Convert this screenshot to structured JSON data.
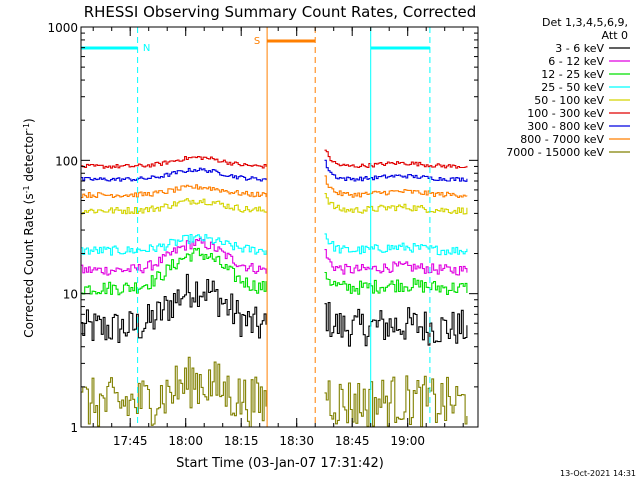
{
  "chart_data": {
    "type": "line",
    "title": "RHESSI Observing Summary Count Rates, Corrected",
    "xlabel": "Start Time (03-Jan-07 17:31:42)",
    "ylabel_parts": [
      "Corrected Count Rate (s",
      "-1",
      " detector",
      "-1",
      ")"
    ],
    "yscale": "log",
    "ylim": [
      1,
      1000
    ],
    "y_ticks": [
      {
        "value": 1,
        "label": "1"
      },
      {
        "value": 10,
        "label": "10"
      },
      {
        "value": 100,
        "label": "100"
      },
      {
        "value": 1000,
        "label": "1000"
      }
    ],
    "xlim": [
      "17:31:42",
      "19:19:00"
    ],
    "x_ticks": [
      {
        "value": "17:45",
        "label": "17:45"
      },
      {
        "value": "18:00",
        "label": "18:00"
      },
      {
        "value": "18:15",
        "label": "18:15"
      },
      {
        "value": "18:30",
        "label": "18:30"
      },
      {
        "value": "18:45",
        "label": "18:45"
      },
      {
        "value": "19:00",
        "label": "19:00"
      }
    ],
    "legend": {
      "position": "top-right",
      "header": [
        "Det 1,3,4,5,6,9,",
        "Att 0"
      ]
    },
    "gap": [
      "18:22",
      "18:37"
    ],
    "series": [
      {
        "name": "3 - 6 keV",
        "color": "#000000",
        "base": 5.5,
        "peak": 11,
        "noise": 0.32,
        "step": 0.5
      },
      {
        "name": "6 - 12 keV",
        "color": "#e000e0",
        "base": 15,
        "peak": 24,
        "noise": 0.09,
        "step": 0.5
      },
      {
        "name": "12 - 25 keV",
        "color": "#00e000",
        "base": 11,
        "peak": 20,
        "noise": 0.12,
        "step": 0.5
      },
      {
        "name": "25 - 50 keV",
        "color": "#00ffff",
        "base": 21,
        "peak": 26,
        "noise": 0.08,
        "step": 0.5
      },
      {
        "name": "50 - 100 keV",
        "color": "#d4d400",
        "base": 42,
        "peak": 50,
        "noise": 0.06,
        "step": 0.5
      },
      {
        "name": "100 - 300 keV",
        "color": "#e00000",
        "base": 90,
        "peak": 105,
        "noise": 0.035,
        "step": 0.5
      },
      {
        "name": "300 - 800 keV",
        "color": "#0000e0",
        "base": 72,
        "peak": 85,
        "noise": 0.035,
        "step": 0.5
      },
      {
        "name": "800 - 7000 keV",
        "color": "#ff7f00",
        "base": 55,
        "peak": 63,
        "noise": 0.045,
        "step": 0.5
      },
      {
        "name": "7000 - 15000 keV",
        "color": "#808000",
        "base": 1.5,
        "peak": 2.2,
        "noise": 0.45,
        "step": 0.5
      }
    ],
    "annotations": [
      {
        "label": "N",
        "color": "#00ffff",
        "style": "night",
        "segments": [
          [
            "17:31:42",
            "17:47"
          ],
          [
            "18:50",
            "19:06"
          ]
        ]
      },
      {
        "label": "S",
        "color": "#ff7f00",
        "style": "saa",
        "segments": [
          [
            "18:22",
            "18:35"
          ]
        ]
      }
    ],
    "footer_date": "13-Oct-2021 14:31"
  }
}
